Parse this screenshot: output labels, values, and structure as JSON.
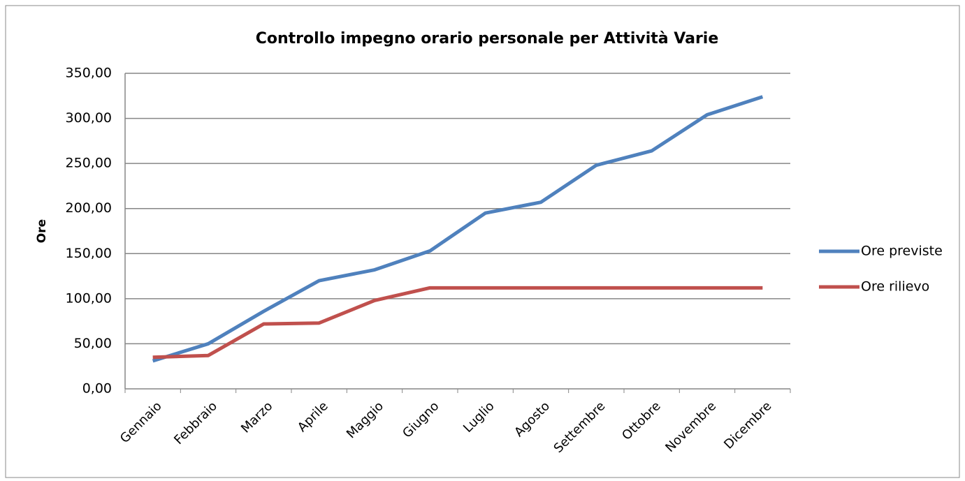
{
  "chart_data": {
    "type": "line",
    "title": "Controllo impegno orario personale per Attività Varie",
    "y_label": "Ore",
    "categories": [
      "Gennaio",
      "Febbraio",
      "Marzo",
      "Aprile",
      "Maggio",
      "Giugno",
      "Luglio",
      "Agosto",
      "Settembre",
      "Ottobre",
      "Novembre",
      "Dicembre"
    ],
    "series": [
      {
        "name": "Ore previste",
        "color": "#4f81bd",
        "values": [
          31,
          50,
          86,
          120,
          132,
          153,
          195,
          207,
          248,
          264,
          304,
          324
        ]
      },
      {
        "name": "Ore rilievo",
        "color": "#c0504d",
        "values": [
          35,
          37,
          72,
          73,
          98,
          112,
          112,
          112,
          112,
          112,
          112,
          112
        ]
      }
    ],
    "ylim": [
      0,
      350
    ],
    "yticks": [
      {
        "value": 0,
        "label": "0,00"
      },
      {
        "value": 50,
        "label": "50,00"
      },
      {
        "value": 100,
        "label": "100,00"
      },
      {
        "value": 150,
        "label": "150,00"
      },
      {
        "value": 200,
        "label": "200,00"
      },
      {
        "value": 250,
        "label": "250,00"
      },
      {
        "value": 300,
        "label": "300,00"
      },
      {
        "value": 350,
        "label": "350,00"
      }
    ],
    "grid": true,
    "legend": "right"
  }
}
